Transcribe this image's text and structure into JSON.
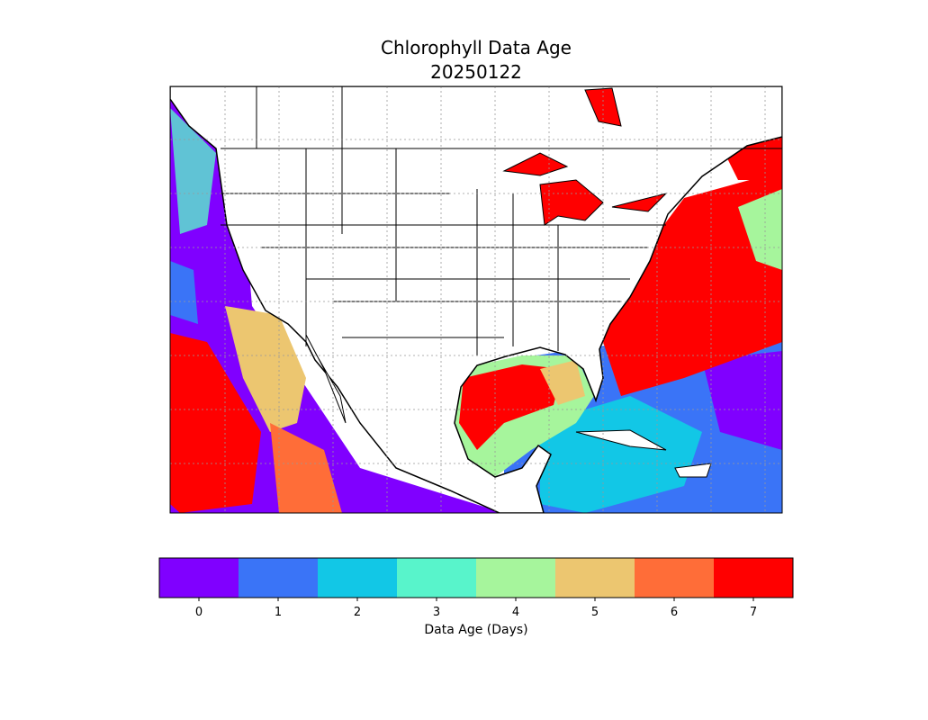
{
  "title": [
    "Chlorophyll Data Age",
    "20250122"
  ],
  "colorbar": {
    "label": "Data Age (Days)",
    "ticks": [
      0,
      1,
      2,
      3,
      4,
      5,
      6,
      7
    ],
    "colors": [
      "#8000ff",
      "#3a74f7",
      "#12c7e6",
      "#58f4cb",
      "#a6f59c",
      "#ecc670",
      "#ff6d38",
      "#ff0000"
    ]
  }
}
